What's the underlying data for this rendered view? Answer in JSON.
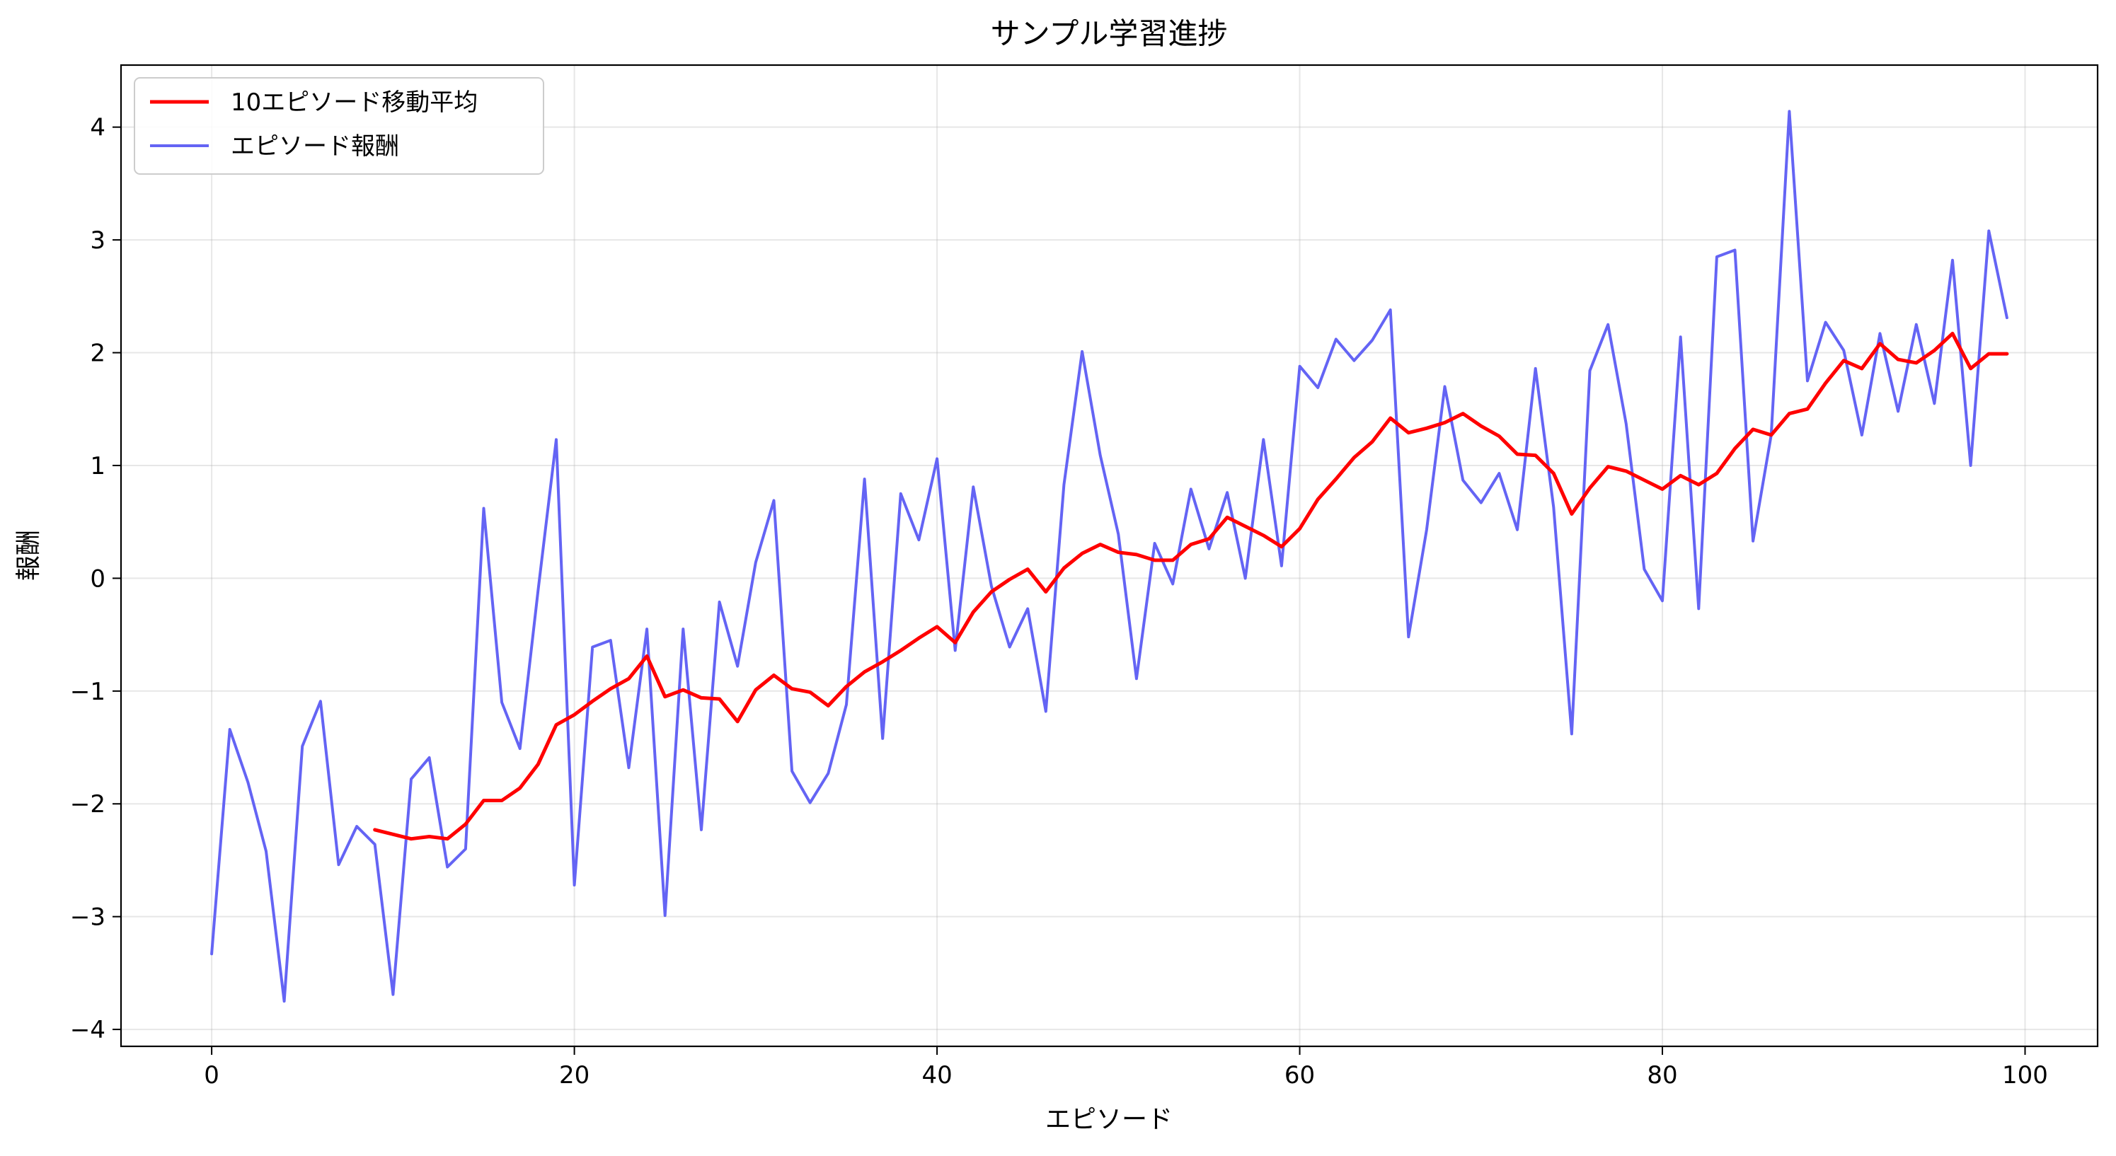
{
  "chart_data": {
    "type": "line",
    "title": "サンプル学習進捗",
    "xlabel": "エピソード",
    "ylabel": "報酬",
    "xlim": [
      -5,
      104
    ],
    "ylim": [
      -4.15,
      4.55
    ],
    "xticks": [
      0,
      20,
      40,
      60,
      80,
      100
    ],
    "yticks": [
      -4,
      -3,
      -2,
      -1,
      0,
      1,
      2,
      3,
      4
    ],
    "grid": true,
    "legend_position": "top-left",
    "series": [
      {
        "name": "10エピソード移動平均",
        "color": "#ff0000",
        "x": [
          9,
          10,
          11,
          12,
          13,
          14,
          15,
          16,
          17,
          18,
          19,
          20,
          21,
          22,
          23,
          24,
          25,
          26,
          27,
          28,
          29,
          30,
          31,
          32,
          33,
          34,
          35,
          36,
          37,
          38,
          39,
          40,
          41,
          42,
          43,
          44,
          45,
          46,
          47,
          48,
          49,
          50,
          51,
          52,
          53,
          54,
          55,
          56,
          57,
          58,
          59,
          60,
          61,
          62,
          63,
          64,
          65,
          66,
          67,
          68,
          69,
          70,
          71,
          72,
          73,
          74,
          75,
          76,
          77,
          78,
          79,
          80,
          81,
          82,
          83,
          84,
          85,
          86,
          87,
          88,
          89,
          90,
          91,
          92,
          93,
          94,
          95,
          96,
          97,
          98,
          99
        ],
        "values": [
          -2.23,
          -2.27,
          -2.31,
          -2.29,
          -2.31,
          -2.18,
          -1.97,
          -1.97,
          -1.86,
          -1.65,
          -1.3,
          -1.21,
          -1.09,
          -0.98,
          -0.89,
          -0.69,
          -1.05,
          -0.99,
          -1.06,
          -1.07,
          -1.27,
          -0.99,
          -0.86,
          -0.98,
          -1.01,
          -1.13,
          -0.96,
          -0.83,
          -0.74,
          -0.64,
          -0.53,
          -0.43,
          -0.57,
          -0.3,
          -0.12,
          -0.01,
          0.08,
          -0.12,
          0.09,
          0.22,
          0.3,
          0.23,
          0.21,
          0.16,
          0.16,
          0.3,
          0.35,
          0.54,
          0.46,
          0.38,
          0.28,
          0.44,
          0.7,
          0.88,
          1.07,
          1.21,
          1.42,
          1.29,
          1.33,
          1.38,
          1.46,
          1.35,
          1.26,
          1.1,
          1.09,
          0.93,
          0.57,
          0.8,
          0.99,
          0.95,
          0.87,
          0.79,
          0.91,
          0.83,
          0.93,
          1.15,
          1.32,
          1.27,
          1.46,
          1.5,
          1.73,
          1.93,
          1.86,
          2.08,
          1.94,
          1.91,
          2.02,
          2.17,
          1.86,
          1.99,
          1.99
        ]
      },
      {
        "name": "エピソード報酬",
        "color": "#6464f4",
        "x": [
          0,
          1,
          2,
          3,
          4,
          5,
          6,
          7,
          8,
          9,
          10,
          11,
          12,
          13,
          14,
          15,
          16,
          17,
          18,
          19,
          20,
          21,
          22,
          23,
          24,
          25,
          26,
          27,
          28,
          29,
          30,
          31,
          32,
          33,
          34,
          35,
          36,
          37,
          38,
          39,
          40,
          41,
          42,
          43,
          44,
          45,
          46,
          47,
          48,
          49,
          50,
          51,
          52,
          53,
          54,
          55,
          56,
          57,
          58,
          59,
          60,
          61,
          62,
          63,
          64,
          65,
          66,
          67,
          68,
          69,
          70,
          71,
          72,
          73,
          74,
          75,
          76,
          77,
          78,
          79,
          80,
          81,
          82,
          83,
          84,
          85,
          86,
          87,
          88,
          89,
          90,
          91,
          92,
          93,
          94,
          95,
          96,
          97,
          98,
          99
        ],
        "values": [
          -3.33,
          -1.34,
          -1.81,
          -2.42,
          -3.75,
          -1.49,
          -1.09,
          -2.54,
          -2.2,
          -2.36,
          -3.69,
          -1.78,
          -1.59,
          -2.56,
          -2.4,
          0.62,
          -1.1,
          -1.51,
          -0.11,
          1.23,
          -2.72,
          -0.61,
          -0.55,
          -1.68,
          -0.45,
          -2.99,
          -0.45,
          -2.23,
          -0.21,
          -0.78,
          0.14,
          0.69,
          -1.71,
          -1.99,
          -1.73,
          -1.12,
          0.88,
          -1.42,
          0.75,
          0.34,
          1.06,
          -0.64,
          0.81,
          -0.07,
          -0.61,
          -0.27,
          -1.18,
          0.83,
          2.01,
          1.09,
          0.39,
          -0.89,
          0.31,
          -0.05,
          0.79,
          0.26,
          0.76,
          0.0,
          1.23,
          0.11,
          1.88,
          1.69,
          2.12,
          1.93,
          2.11,
          2.38,
          -0.52,
          0.43,
          1.7,
          0.87,
          0.67,
          0.93,
          0.43,
          1.86,
          0.63,
          -1.38,
          1.84,
          2.25,
          1.37,
          0.08,
          -0.2,
          2.14,
          -0.27,
          2.85,
          2.91,
          0.33,
          1.27,
          4.14,
          1.75,
          2.27,
          2.02,
          1.27,
          2.17,
          1.48,
          2.25,
          1.55,
          2.82,
          1.0,
          3.08,
          2.31
        ]
      }
    ]
  }
}
